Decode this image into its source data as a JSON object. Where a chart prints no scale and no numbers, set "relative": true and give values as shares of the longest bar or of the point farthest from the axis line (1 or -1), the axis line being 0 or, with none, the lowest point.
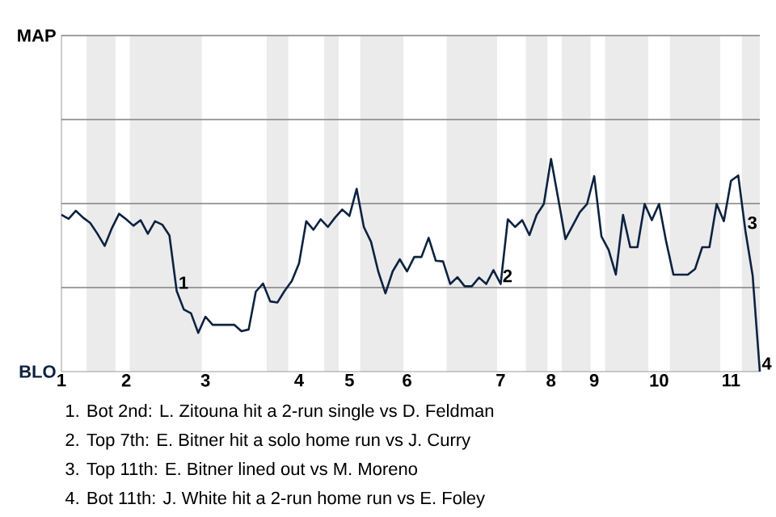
{
  "chart_data": {
    "type": "line",
    "relative": true,
    "categories": [
      "1",
      null,
      null,
      null,
      null,
      null,
      null,
      null,
      null,
      "2",
      null,
      null,
      null,
      null,
      null,
      null,
      null,
      null,
      null,
      null,
      "3",
      null,
      null,
      null,
      null,
      null,
      null,
      null,
      null,
      null,
      null,
      null,
      null,
      "4",
      null,
      null,
      null,
      null,
      null,
      null,
      "5",
      null,
      null,
      null,
      null,
      null,
      null,
      null,
      "6",
      null,
      null,
      null,
      null,
      null,
      null,
      null,
      null,
      null,
      null,
      null,
      null,
      "7",
      null,
      null,
      null,
      null,
      null,
      null,
      "8",
      null,
      null,
      null,
      null,
      null,
      "9",
      null,
      null,
      null,
      null,
      null,
      null,
      null,
      null,
      "10",
      null,
      null,
      null,
      null,
      null,
      null,
      null,
      null,
      null,
      "11",
      null,
      null,
      null,
      null
    ],
    "series": [
      {
        "color": "#0d2240",
        "values": [
          0.737,
          0.718,
          0.756,
          0.724,
          0.699,
          0.648,
          0.591,
          0.674,
          0.742,
          0.716,
          0.686,
          0.712,
          0.648,
          0.707,
          0.691,
          0.64,
          0.38,
          0.292,
          0.274,
          0.182,
          0.258,
          0.22,
          0.22,
          0.22,
          0.22,
          0.19,
          0.198,
          0.376,
          0.414,
          0.33,
          0.325,
          0.38,
          0.426,
          0.509,
          0.707,
          0.667,
          0.716,
          0.68,
          0.724,
          0.762,
          0.732,
          0.859,
          0.68,
          0.61,
          0.471,
          0.368,
          0.471,
          0.528,
          0.471,
          0.539,
          0.539,
          0.629,
          0.521,
          0.518,
          0.412,
          0.444,
          0.401,
          0.401,
          0.442,
          0.412,
          0.477,
          0.412,
          0.716,
          0.68,
          0.712,
          0.642,
          0.737,
          0.788,
          1,
          0.813,
          0.623,
          0.686,
          0.75,
          0.788,
          0.919,
          0.636,
          0.572,
          0.456,
          0.737,
          0.585,
          0.585,
          0.788,
          0.712,
          0.788,
          0.61,
          0.456,
          0.456,
          0.456,
          0.482,
          0.585,
          0.585,
          0.788,
          0.707,
          0.897,
          0.922,
          0.661,
          0.452,
          0
        ]
      }
    ],
    "ref_lines": [
      {
        "axis": "y",
        "value": 0.395,
        "color": "#808080"
      },
      {
        "axis": "y",
        "value": 0.79,
        "color": "#808080"
      },
      {
        "axis": "y",
        "value": 1.185,
        "color": "#808080"
      },
      {
        "axis": "y",
        "value": 1.58,
        "color": "#808080"
      }
    ],
    "annotations": [
      "MAP",
      "BLO",
      {
        "text": "1",
        "y": 0.38
      },
      {
        "text": "2",
        "x": "7",
        "y": 0.412
      },
      {
        "text": "3",
        "y": 0.661
      },
      {
        "text": "4",
        "y": 0
      },
      "1. Bot 2nd: L. Zitouna hit a 2-run single vs D. Feldman",
      "2. Top 7th: E. Bitner hit a solo home run vs J. Curry",
      "3. Top 11th: E. Bitner lined out vs M. Moreno",
      "4. Bot 11th: J. White hit a 2-run home run vs E. Foley"
    ],
    "marker": "none",
    "line_style": "solid"
  }
}
